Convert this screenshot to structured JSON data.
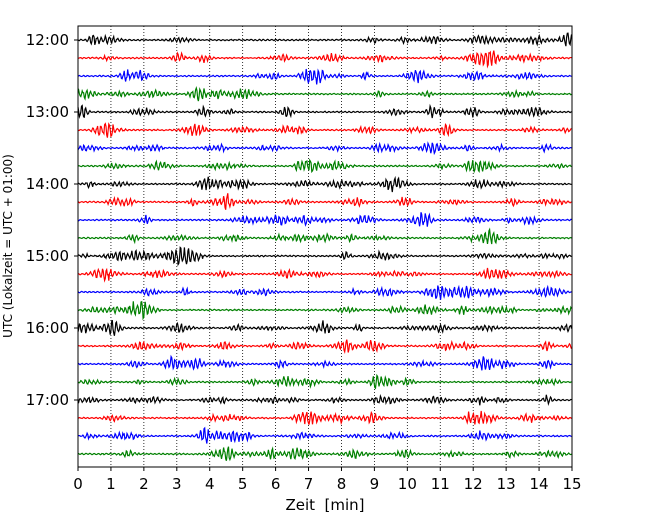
{
  "chart_data": {
    "type": "line",
    "title": "",
    "xlabel": "Zeit  [min]",
    "ylabel": "UTC (Lokalzeit = UTC + 01:00)",
    "xlim": [
      0,
      15
    ],
    "x_ticks": [
      "0",
      "1",
      "2",
      "3",
      "4",
      "5",
      "6",
      "7",
      "8",
      "9",
      "10",
      "11",
      "12",
      "13",
      "14",
      "15"
    ],
    "y_ticks": [
      "12:00",
      "13:00",
      "14:00",
      "15:00",
      "16:00",
      "17:00"
    ],
    "vertical_grid": true,
    "grid_style": "dotted",
    "trace_interval_min": 15,
    "trace_colors": [
      "#000000",
      "#ff0000",
      "#0000ff",
      "#008000"
    ],
    "traces": [
      "12:00",
      "12:15",
      "12:30",
      "12:45",
      "13:00",
      "13:15",
      "13:30",
      "13:45",
      "14:00",
      "14:15",
      "14:30",
      "14:45",
      "15:00",
      "15:15",
      "15:30",
      "15:45",
      "16:00",
      "16:15",
      "16:30",
      "16:45",
      "17:00",
      "17:15",
      "17:30",
      "17:45"
    ]
  }
}
